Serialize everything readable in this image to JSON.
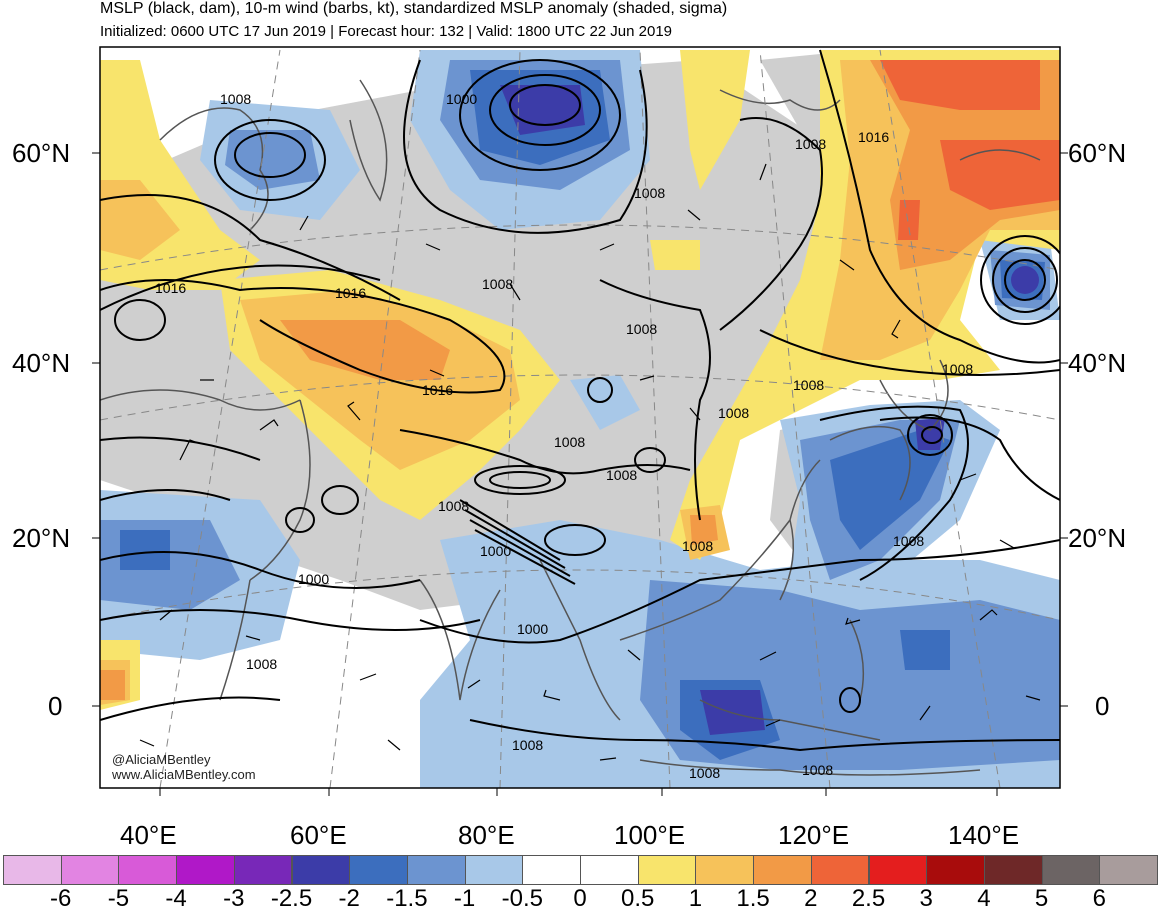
{
  "header": {
    "title": "MSLP (black, dam), 10-m wind (barbs, kt), standardized MSLP anomaly (shaded, sigma)",
    "subtitle": "Initialized: 0600 UTC 17 Jun 2019 | Forecast hour: 132 | Valid: 1800 UTC 22 Jun 2019"
  },
  "map": {
    "lat_labels": [
      "60°N",
      "40°N",
      "20°N",
      "0"
    ],
    "lon_labels": [
      "40°E",
      "60°E",
      "80°E",
      "100°E",
      "120°E",
      "140°E"
    ],
    "isobar_labels": [
      "1008",
      "1000",
      "1008",
      "1016",
      "1008",
      "1016",
      "1008",
      "1016",
      "1008",
      "1008",
      "1016",
      "1008",
      "1008",
      "1008",
      "1008",
      "1008",
      "1008",
      "1000",
      "1008",
      "1000",
      "1000",
      "1008",
      "1008",
      "1008",
      "1008"
    ],
    "credits": [
      "@AliciaMBentley",
      "www.AliciaMBentley.com"
    ]
  },
  "colorbar": {
    "colors": [
      "#e8b8e8",
      "#e284e2",
      "#d85ad8",
      "#b018c8",
      "#7828b8",
      "#3c3ca8",
      "#3c6ebe",
      "#6c94d0",
      "#a8c8e8",
      "#ffffff",
      "#ffffff",
      "#f8e46c",
      "#f6c25a",
      "#f29a46",
      "#ee6438",
      "#e41e1e",
      "#a80c0c",
      "#6e2828",
      "#6c6464",
      "#a89c9c"
    ],
    "tick_labels": [
      "-6",
      "-5",
      "-4",
      "-3",
      "-2.5",
      "-2",
      "-1.5",
      "-1",
      "-0.5",
      "0",
      "0.5",
      "1",
      "1.5",
      "2",
      "2.5",
      "3",
      "4",
      "5",
      "6"
    ]
  }
}
